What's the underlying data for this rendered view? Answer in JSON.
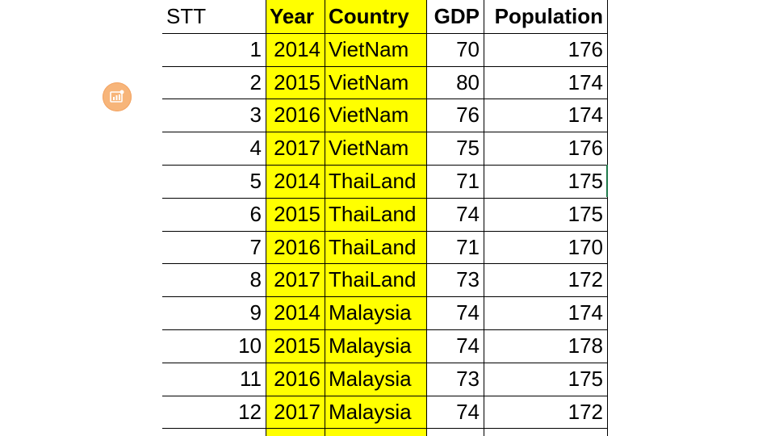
{
  "table": {
    "headers": {
      "stt": "STT",
      "year": "Year",
      "country": "Country",
      "gdp": "GDP",
      "population": "Population"
    },
    "rows": [
      {
        "stt": "1",
        "year": "2014",
        "country": "VietNam",
        "gdp": "70",
        "population": "176"
      },
      {
        "stt": "2",
        "year": "2015",
        "country": "VietNam",
        "gdp": "80",
        "population": "174"
      },
      {
        "stt": "3",
        "year": "2016",
        "country": "VietNam",
        "gdp": "76",
        "population": "174"
      },
      {
        "stt": "4",
        "year": "2017",
        "country": "VietNam",
        "gdp": "75",
        "population": "176"
      },
      {
        "stt": "5",
        "year": "2014",
        "country": "ThaiLand",
        "gdp": "71",
        "population": "175"
      },
      {
        "stt": "6",
        "year": "2015",
        "country": "ThaiLand",
        "gdp": "74",
        "population": "175"
      },
      {
        "stt": "7",
        "year": "2016",
        "country": "ThaiLand",
        "gdp": "71",
        "population": "170"
      },
      {
        "stt": "8",
        "year": "2017",
        "country": "ThaiLand",
        "gdp": "73",
        "population": "172"
      },
      {
        "stt": "9",
        "year": "2014",
        "country": "Malaysia",
        "gdp": "74",
        "population": "174"
      },
      {
        "stt": "10",
        "year": "2015",
        "country": "Malaysia",
        "gdp": "74",
        "population": "178"
      },
      {
        "stt": "11",
        "year": "2016",
        "country": "Malaysia",
        "gdp": "73",
        "population": "175"
      },
      {
        "stt": "12",
        "year": "2017",
        "country": "Malaysia",
        "gdp": "74",
        "population": "172"
      }
    ]
  },
  "colors": {
    "highlight": "#ffff00",
    "badge": "#f7b57a",
    "selection_marker": "#1f7a4c"
  },
  "icons": {
    "badge": "slide-icon"
  }
}
